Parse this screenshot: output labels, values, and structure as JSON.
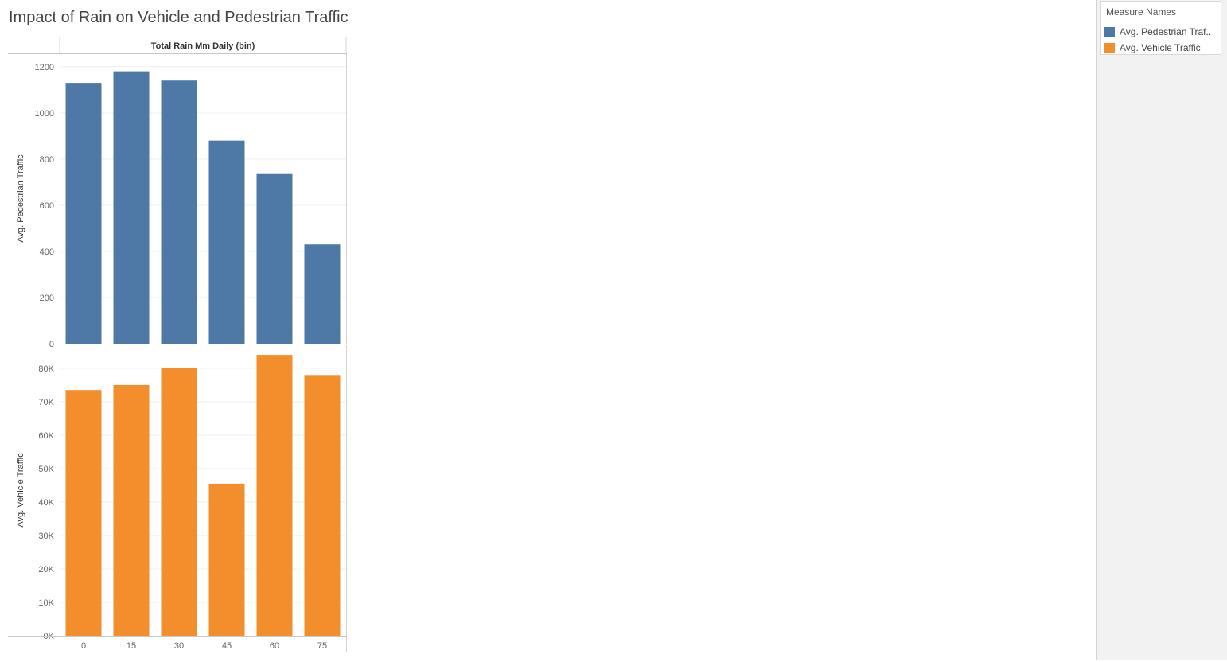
{
  "title": "Impact of Rain on Vehicle and Pedestrian Traffic",
  "legend": {
    "title": "Measure Names",
    "items": [
      {
        "label": "Avg. Pedestrian Traf..",
        "color": "#4e79a7"
      },
      {
        "label": "Avg. Vehicle Traffic",
        "color": "#f28e2b"
      }
    ]
  },
  "chart_data": {
    "type": "bar",
    "column_header": "Total Rain Mm Daily (bin)",
    "categories": [
      "0",
      "15",
      "30",
      "45",
      "60",
      "75"
    ],
    "series": [
      {
        "name": "Avg. Pedestrian Traffic",
        "ylabel": "Avg. Pedestrian Traffic",
        "color": "#4e79a7",
        "values": [
          1130,
          1180,
          1140,
          880,
          735,
          430
        ],
        "ylim": [
          0,
          1220
        ],
        "ticks": [
          0,
          200,
          400,
          600,
          800,
          1000,
          1200
        ],
        "tick_labels": [
          "0",
          "200",
          "400",
          "600",
          "800",
          "1000",
          "1200"
        ]
      },
      {
        "name": "Avg. Vehicle Traffic",
        "ylabel": "Avg. Vehicle Traffic",
        "color": "#f28e2b",
        "values": [
          73500,
          75000,
          80000,
          45500,
          84000,
          78000
        ],
        "ylim": [
          0,
          84500
        ],
        "ticks": [
          0,
          10000,
          20000,
          30000,
          40000,
          50000,
          60000,
          70000,
          80000
        ],
        "tick_labels": [
          "0K",
          "10K",
          "20K",
          "30K",
          "40K",
          "50K",
          "60K",
          "70K",
          "80K"
        ]
      }
    ],
    "grid": true
  }
}
